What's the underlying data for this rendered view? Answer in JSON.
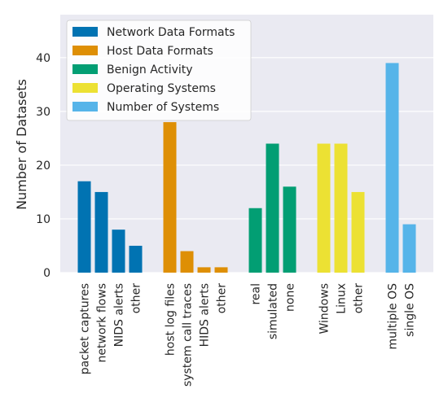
{
  "chart_data": {
    "type": "bar",
    "title": "",
    "xlabel": "",
    "ylabel": "Number of Datasets",
    "ylim": [
      0,
      48
    ],
    "yticks": [
      0,
      10,
      20,
      30,
      40
    ],
    "grid": true,
    "legend_position": "top-left",
    "series": [
      {
        "name": "Network Data Formats",
        "color": "#0173b2",
        "categories": [
          "packet captures",
          "network flows",
          "NIDS alerts",
          "other"
        ],
        "values": [
          17,
          15,
          8,
          5
        ]
      },
      {
        "name": "Host Data Formats",
        "color": "#de8f05",
        "categories": [
          "host log files",
          "system call traces",
          "HIDS alerts",
          "other"
        ],
        "values": [
          28,
          4,
          1,
          1
        ]
      },
      {
        "name": "Benign Activity",
        "color": "#029e73",
        "categories": [
          "real",
          "simulated",
          "none"
        ],
        "values": [
          12,
          24,
          16
        ]
      },
      {
        "name": "Operating Systems",
        "color": "#ece133",
        "categories": [
          "Windows",
          "Linux",
          "other"
        ],
        "values": [
          24,
          24,
          15
        ]
      },
      {
        "name": "Number of Systems",
        "color": "#56b4e9",
        "categories": [
          "multiple OS",
          "single OS"
        ],
        "values": [
          39,
          9
        ]
      }
    ]
  }
}
